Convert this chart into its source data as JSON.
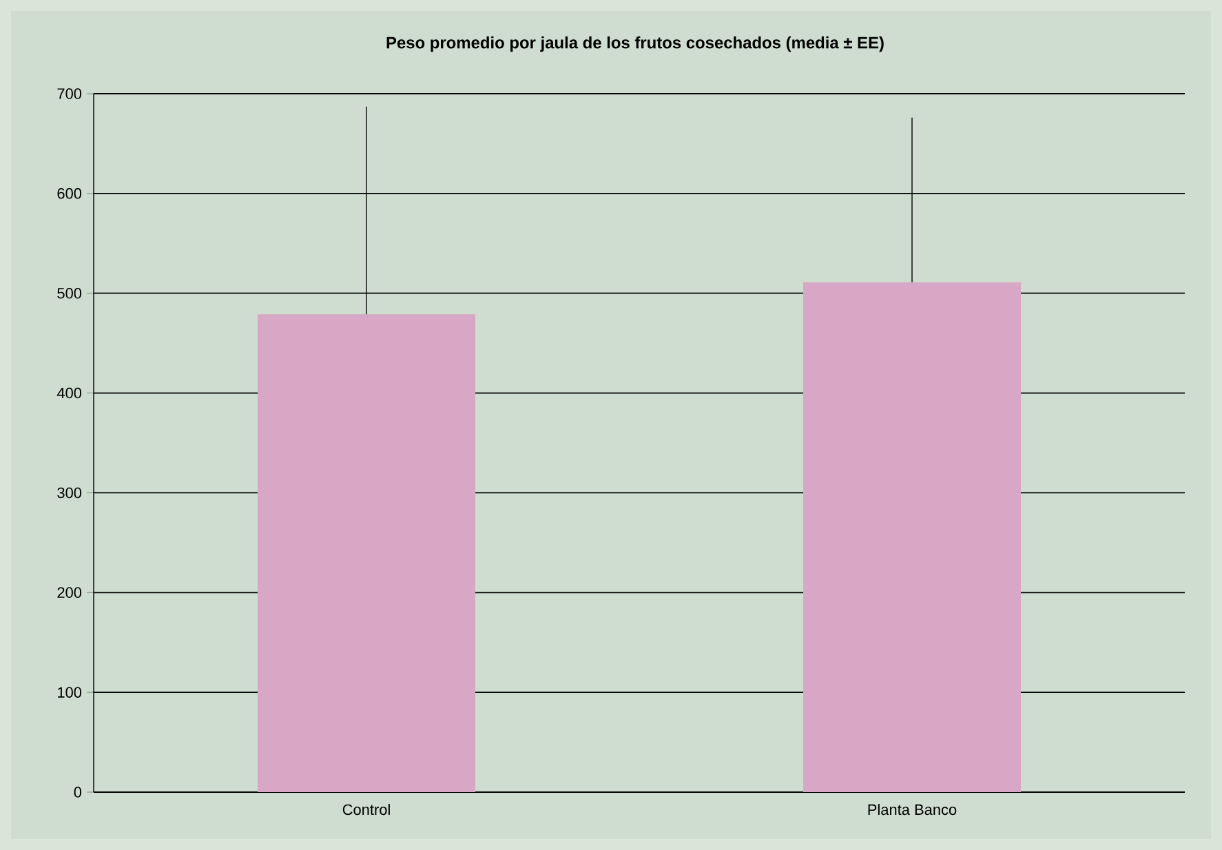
{
  "chart_data": {
    "type": "bar",
    "title": "Peso promedio por jaula de los frutos cosechados (media  ± EE)",
    "categories": [
      "Control",
      "Planta Banco"
    ],
    "values": [
      479,
      511
    ],
    "errors": [
      [
        479,
        687
      ],
      [
        511,
        676
      ]
    ],
    "color": "#d9a7c6",
    "ylim": [
      0,
      700
    ],
    "yticks": [
      0,
      100,
      200,
      300,
      400,
      500,
      600,
      700
    ],
    "grid": "y"
  }
}
